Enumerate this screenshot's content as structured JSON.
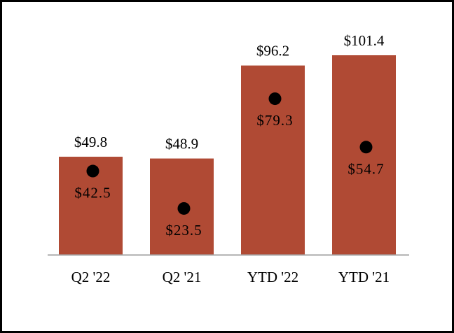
{
  "chart_data": {
    "type": "bar",
    "title": "",
    "xlabel": "",
    "ylabel": "",
    "categories": [
      "Q2 '22",
      "Q2 '21",
      "YTD '22",
      "YTD '21"
    ],
    "series": [
      {
        "values": [
          49.8,
          48.9,
          96.2,
          101.4
        ],
        "labels": [
          "$49.8",
          "$48.9",
          "$96.2",
          "$101.4"
        ],
        "mark": "bar"
      },
      {
        "values": [
          42.5,
          23.5,
          79.3,
          54.7
        ],
        "labels": [
          "$42.5",
          "$23.5",
          "$79.3",
          "$54.7"
        ],
        "mark": "dot"
      }
    ],
    "ylim": [
      0,
      110
    ],
    "grid": false,
    "legend": "none",
    "colors": {
      "bar": "#B04A34",
      "dot": "#000000",
      "axis": "#A6A6A6"
    }
  }
}
